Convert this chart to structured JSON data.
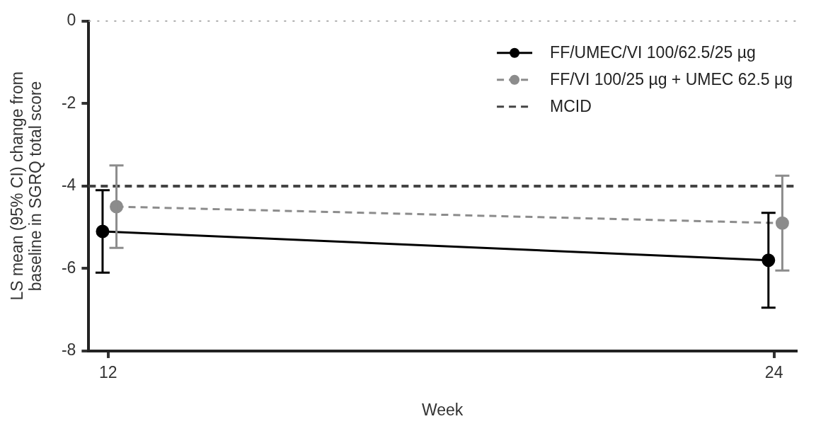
{
  "chart_data": {
    "type": "line",
    "xlabel": "Week",
    "ylabel": "LS mean (95% CI) change from\nbaseline in SGRQ total score",
    "xlim": [
      11.65,
      24.4
    ],
    "xticks": [
      12,
      24
    ],
    "ylim": [
      -8,
      0
    ],
    "yticks": [
      0,
      -2,
      -4,
      -6,
      -8
    ],
    "grid": false,
    "legend": "top right",
    "marker": "circle",
    "series": [
      {
        "name": "FF/UMEC/VI 100/62.5/25 µg",
        "color": "#000000",
        "x": [
          11.9,
          23.9
        ],
        "values": [
          -5.1,
          -5.8
        ],
        "errors": [
          [
            -6.1,
            -4.1
          ],
          [
            -6.95,
            -4.65
          ]
        ],
        "line_style": "solid"
      },
      {
        "name": "FF/VI 100/25 µg + UMEC 62.5 µg",
        "color": "#8c8c8c",
        "x": [
          12.15,
          24.15
        ],
        "values": [
          -4.5,
          -4.9
        ],
        "errors": [
          [
            -5.5,
            -3.5
          ],
          [
            -6.05,
            -3.75
          ]
        ],
        "line_style": "dashed"
      }
    ],
    "ref_lines": [
      {
        "axis": "y",
        "value": 0,
        "label": null,
        "color": "#aaaaaa",
        "line_style": "dotted"
      },
      {
        "axis": "y",
        "value": -4,
        "label": "MCID",
        "color": "#444444",
        "line_style": "dashed"
      }
    ]
  }
}
